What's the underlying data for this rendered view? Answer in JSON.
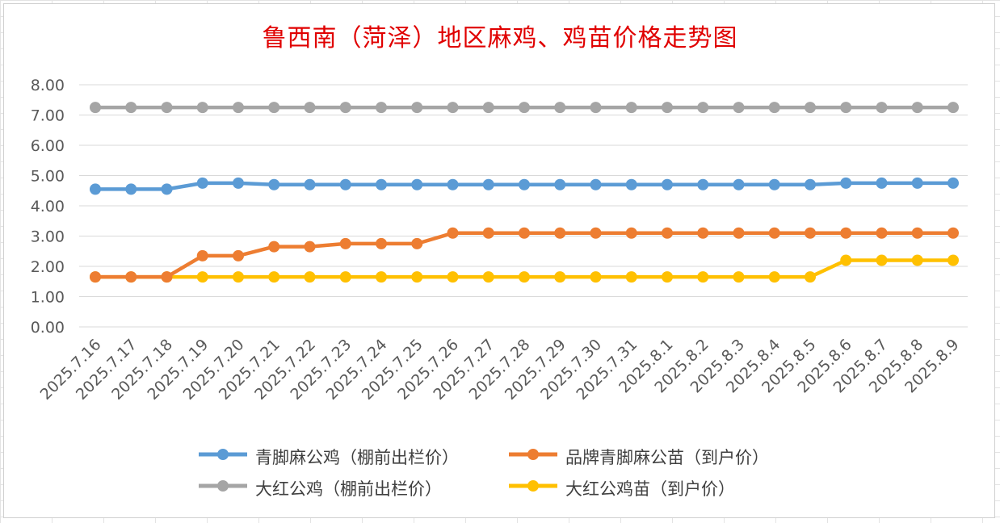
{
  "chart_data": {
    "type": "line",
    "title": "鲁西南（菏泽）地区麻鸡、鸡苗价格走势图",
    "xlabel": "",
    "ylabel": "",
    "ylim": [
      0,
      8
    ],
    "yticks": [
      "0.00",
      "1.00",
      "2.00",
      "3.00",
      "4.00",
      "5.00",
      "6.00",
      "7.00",
      "8.00"
    ],
    "grid": true,
    "legend_position": "bottom",
    "categories": [
      "2025.7.16",
      "2025.7.17",
      "2025.7.18",
      "2025.7.19",
      "2025.7.20",
      "2025.7.21",
      "2025.7.22",
      "2025.7.23",
      "2025.7.24",
      "2025.7.25",
      "2025.7.26",
      "2025.7.27",
      "2025.7.28",
      "2025.7.29",
      "2025.7.30",
      "2025.7.31",
      "2025.8.1",
      "2025.8.2",
      "2025.8.3",
      "2025.8.4",
      "2025.8.5",
      "2025.8.6",
      "2025.8.7",
      "2025.8.8",
      "2025.8.9"
    ],
    "series": [
      {
        "name": "青脚麻公鸡（棚前出栏价）",
        "color": "#5b9bd5",
        "values": [
          4.55,
          4.55,
          4.55,
          4.75,
          4.75,
          4.7,
          4.7,
          4.7,
          4.7,
          4.7,
          4.7,
          4.7,
          4.7,
          4.7,
          4.7,
          4.7,
          4.7,
          4.7,
          4.7,
          4.7,
          4.7,
          4.75,
          4.75,
          4.75,
          4.75
        ]
      },
      {
        "name": "品牌青脚麻公苗（到户价）",
        "color": "#ed7d31",
        "values": [
          1.65,
          1.65,
          1.65,
          2.35,
          2.35,
          2.65,
          2.65,
          2.75,
          2.75,
          2.75,
          3.1,
          3.1,
          3.1,
          3.1,
          3.1,
          3.1,
          3.1,
          3.1,
          3.1,
          3.1,
          3.1,
          3.1,
          3.1,
          3.1,
          3.1
        ]
      },
      {
        "name": "大红公鸡（棚前出栏价）",
        "color": "#a5a5a5",
        "values": [
          7.25,
          7.25,
          7.25,
          7.25,
          7.25,
          7.25,
          7.25,
          7.25,
          7.25,
          7.25,
          7.25,
          7.25,
          7.25,
          7.25,
          7.25,
          7.25,
          7.25,
          7.25,
          7.25,
          7.25,
          7.25,
          7.25,
          7.25,
          7.25,
          7.25
        ]
      },
      {
        "name": "大红公鸡苗（到户价）",
        "color": "#ffc000",
        "values": [
          1.65,
          1.65,
          1.65,
          1.65,
          1.65,
          1.65,
          1.65,
          1.65,
          1.65,
          1.65,
          1.65,
          1.65,
          1.65,
          1.65,
          1.65,
          1.65,
          1.65,
          1.65,
          1.65,
          1.65,
          1.65,
          2.2,
          2.2,
          2.2,
          2.2
        ]
      }
    ]
  }
}
